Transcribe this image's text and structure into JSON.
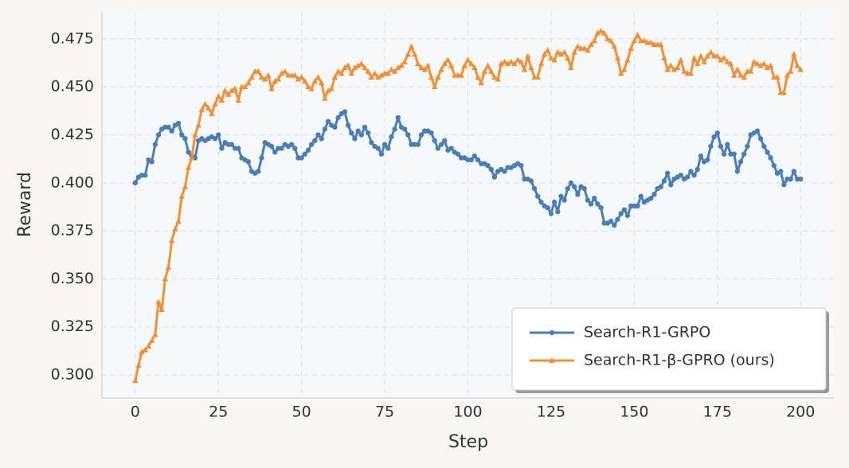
{
  "chart_data": {
    "type": "line",
    "xlabel": "Step",
    "ylabel": "Reward",
    "x": [
      0,
      1,
      2,
      3,
      4,
      5,
      6,
      7,
      8,
      9,
      10,
      11,
      12,
      13,
      14,
      15,
      16,
      17,
      18,
      19,
      20,
      21,
      22,
      23,
      24,
      25,
      26,
      27,
      28,
      29,
      30,
      31,
      32,
      33,
      34,
      35,
      36,
      37,
      38,
      39,
      40,
      41,
      42,
      43,
      44,
      45,
      46,
      47,
      48,
      49,
      50,
      51,
      52,
      53,
      54,
      55,
      56,
      57,
      58,
      59,
      60,
      61,
      62,
      63,
      64,
      65,
      66,
      67,
      68,
      69,
      70,
      71,
      72,
      73,
      74,
      75,
      76,
      77,
      78,
      79,
      80,
      81,
      82,
      83,
      84,
      85,
      86,
      87,
      88,
      89,
      90,
      91,
      92,
      93,
      94,
      95,
      96,
      97,
      98,
      99,
      100,
      101,
      102,
      103,
      104,
      105,
      106,
      107,
      108,
      109,
      110,
      111,
      112,
      113,
      114,
      115,
      116,
      117,
      118,
      119,
      120,
      121,
      122,
      123,
      124,
      125,
      126,
      127,
      128,
      129,
      130,
      131,
      132,
      133,
      134,
      135,
      136,
      137,
      138,
      139,
      140,
      141,
      142,
      143,
      144,
      145,
      146,
      147,
      148,
      149,
      150,
      151,
      152,
      153,
      154,
      155,
      156,
      157,
      158,
      159,
      160,
      161,
      162,
      163,
      164,
      165,
      166,
      167,
      168,
      169,
      170,
      171,
      172,
      173,
      174,
      175,
      176,
      177,
      178,
      179,
      180,
      181,
      182,
      183,
      184,
      185,
      186,
      187,
      188,
      189,
      190,
      191,
      192,
      193,
      194,
      195,
      196,
      197,
      198,
      199,
      200
    ],
    "series": [
      {
        "name": "Search-R1-GRPO",
        "color": "#4a7fb5",
        "marker": "circle",
        "values": [
          0.4,
          0.403,
          0.404,
          0.404,
          0.412,
          0.411,
          0.42,
          0.425,
          0.428,
          0.429,
          0.429,
          0.427,
          0.43,
          0.431,
          0.425,
          0.423,
          0.416,
          0.414,
          0.413,
          0.422,
          0.423,
          0.422,
          0.423,
          0.424,
          0.423,
          0.425,
          0.418,
          0.421,
          0.42,
          0.42,
          0.418,
          0.418,
          0.413,
          0.412,
          0.411,
          0.406,
          0.405,
          0.406,
          0.413,
          0.421,
          0.42,
          0.419,
          0.416,
          0.418,
          0.418,
          0.42,
          0.419,
          0.42,
          0.418,
          0.413,
          0.413,
          0.415,
          0.417,
          0.42,
          0.422,
          0.425,
          0.423,
          0.428,
          0.432,
          0.43,
          0.429,
          0.434,
          0.436,
          0.437,
          0.43,
          0.426,
          0.423,
          0.427,
          0.425,
          0.429,
          0.426,
          0.421,
          0.419,
          0.418,
          0.415,
          0.42,
          0.418,
          0.424,
          0.428,
          0.434,
          0.429,
          0.428,
          0.425,
          0.42,
          0.42,
          0.42,
          0.425,
          0.427,
          0.427,
          0.426,
          0.422,
          0.418,
          0.42,
          0.422,
          0.417,
          0.418,
          0.416,
          0.415,
          0.413,
          0.413,
          0.412,
          0.412,
          0.414,
          0.412,
          0.41,
          0.41,
          0.409,
          0.407,
          0.403,
          0.406,
          0.407,
          0.406,
          0.408,
          0.408,
          0.409,
          0.41,
          0.409,
          0.402,
          0.402,
          0.401,
          0.397,
          0.393,
          0.39,
          0.388,
          0.387,
          0.384,
          0.39,
          0.385,
          0.393,
          0.391,
          0.397,
          0.4,
          0.398,
          0.394,
          0.398,
          0.397,
          0.391,
          0.389,
          0.392,
          0.389,
          0.387,
          0.379,
          0.379,
          0.38,
          0.378,
          0.381,
          0.384,
          0.386,
          0.383,
          0.388,
          0.388,
          0.388,
          0.393,
          0.39,
          0.391,
          0.392,
          0.394,
          0.397,
          0.398,
          0.401,
          0.405,
          0.399,
          0.402,
          0.403,
          0.404,
          0.402,
          0.403,
          0.406,
          0.404,
          0.407,
          0.414,
          0.411,
          0.412,
          0.419,
          0.424,
          0.426,
          0.419,
          0.415,
          0.42,
          0.415,
          0.415,
          0.406,
          0.411,
          0.415,
          0.419,
          0.425,
          0.426,
          0.427,
          0.423,
          0.419,
          0.416,
          0.413,
          0.409,
          0.405,
          0.406,
          0.399,
          0.402,
          0.402,
          0.406,
          0.402,
          0.402
        ]
      },
      {
        "name": "Search-R1-β-GPRO (ours)",
        "color": "#f0913a",
        "marker": "triangle",
        "values": [
          0.297,
          0.305,
          0.312,
          0.313,
          0.315,
          0.318,
          0.321,
          0.338,
          0.334,
          0.35,
          0.356,
          0.37,
          0.376,
          0.38,
          0.393,
          0.398,
          0.408,
          0.413,
          0.425,
          0.43,
          0.438,
          0.441,
          0.439,
          0.436,
          0.441,
          0.445,
          0.443,
          0.448,
          0.446,
          0.448,
          0.449,
          0.443,
          0.45,
          0.45,
          0.452,
          0.455,
          0.458,
          0.458,
          0.455,
          0.454,
          0.456,
          0.449,
          0.453,
          0.454,
          0.457,
          0.458,
          0.456,
          0.456,
          0.456,
          0.454,
          0.455,
          0.453,
          0.45,
          0.449,
          0.453,
          0.455,
          0.452,
          0.444,
          0.448,
          0.449,
          0.455,
          0.458,
          0.457,
          0.46,
          0.461,
          0.457,
          0.46,
          0.461,
          0.462,
          0.46,
          0.458,
          0.455,
          0.457,
          0.455,
          0.456,
          0.457,
          0.457,
          0.459,
          0.458,
          0.46,
          0.461,
          0.463,
          0.467,
          0.471,
          0.467,
          0.462,
          0.46,
          0.459,
          0.461,
          0.455,
          0.45,
          0.455,
          0.459,
          0.462,
          0.464,
          0.461,
          0.456,
          0.456,
          0.456,
          0.461,
          0.464,
          0.462,
          0.46,
          0.455,
          0.452,
          0.458,
          0.461,
          0.458,
          0.455,
          0.454,
          0.462,
          0.463,
          0.462,
          0.463,
          0.462,
          0.464,
          0.463,
          0.459,
          0.466,
          0.46,
          0.455,
          0.455,
          0.462,
          0.467,
          0.469,
          0.465,
          0.464,
          0.468,
          0.467,
          0.468,
          0.465,
          0.46,
          0.468,
          0.471,
          0.47,
          0.47,
          0.469,
          0.472,
          0.474,
          0.478,
          0.479,
          0.478,
          0.475,
          0.474,
          0.471,
          0.465,
          0.457,
          0.459,
          0.464,
          0.47,
          0.474,
          0.477,
          0.474,
          0.474,
          0.473,
          0.473,
          0.472,
          0.472,
          0.472,
          0.465,
          0.459,
          0.461,
          0.459,
          0.46,
          0.464,
          0.458,
          0.457,
          0.457,
          0.465,
          0.462,
          0.466,
          0.463,
          0.466,
          0.468,
          0.466,
          0.466,
          0.464,
          0.465,
          0.463,
          0.462,
          0.456,
          0.459,
          0.456,
          0.455,
          0.458,
          0.458,
          0.463,
          0.462,
          0.461,
          0.462,
          0.46,
          0.461,
          0.455,
          0.455,
          0.447,
          0.447,
          0.456,
          0.458,
          0.467,
          0.461,
          0.459
        ]
      }
    ],
    "xlim": [
      -10,
      210
    ],
    "xticks": [
      0,
      25,
      50,
      75,
      100,
      125,
      150,
      175,
      200
    ],
    "ylim": [
      0.288,
      0.489
    ],
    "yticks": [
      {
        "value": 0.3,
        "label": "0.300"
      },
      0.325,
      {
        "value": 0.35,
        "label": "0.350"
      },
      0.375,
      {
        "value": 0.4,
        "label": "0.400"
      },
      0.425,
      {
        "value": 0.45,
        "label": "0.450"
      },
      0.475
    ],
    "grid": true,
    "legend": "lower right"
  }
}
